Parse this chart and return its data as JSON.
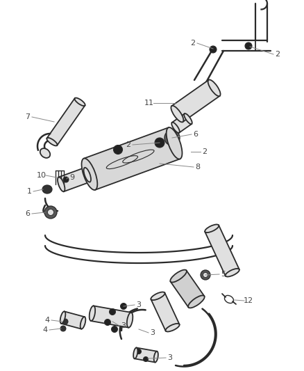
{
  "bg_color": "#ffffff",
  "line_color": "#2a2a2a",
  "label_color": "#444444",
  "leader_color": "#888888",
  "pipe_fill": "#e0e0e0",
  "dark_fill": "#222222",
  "figsize": [
    4.38,
    5.33
  ],
  "dpi": 100,
  "xlim": [
    0,
    438
  ],
  "ylim": [
    0,
    533
  ]
}
